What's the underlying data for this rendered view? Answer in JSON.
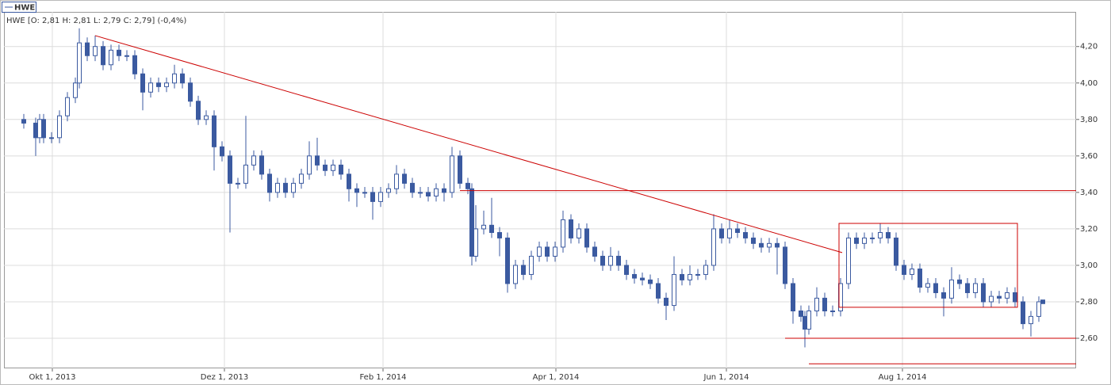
{
  "chart_data": {
    "type": "candlestick",
    "legend": "HWE",
    "info": "HWE [O: 2,81  H: 2,81  L: 2,79  C: 2,79] (-0,4%)",
    "color": "#3b5aa0",
    "annotation_color": "#cc0000",
    "grid": true,
    "xlim": [
      -5,
      265.4
    ],
    "ylim": [
      2.435,
      4.39
    ],
    "xticks": [
      {
        "value": 7.2,
        "label": "Okt 1, 2013"
      },
      {
        "value": 50.6,
        "label": "Dez 1, 2013"
      },
      {
        "value": 90.6,
        "label": "Feb 1, 2014"
      },
      {
        "value": 134.2,
        "label": "Apr 1, 2014"
      },
      {
        "value": 177.2,
        "label": "Jun 1, 2014"
      },
      {
        "value": 221.6,
        "label": "Aug 1, 2014"
      }
    ],
    "yticks": [
      {
        "value": 2.6,
        "label": "2,60"
      },
      {
        "value": 2.8,
        "label": "2,80"
      },
      {
        "value": 3.0,
        "label": "3,00"
      },
      {
        "value": 3.2,
        "label": "3,20"
      },
      {
        "value": 3.4,
        "label": "3,40"
      },
      {
        "value": 3.6,
        "label": "3,60"
      },
      {
        "value": 3.8,
        "label": "3,80"
      },
      {
        "value": 4.0,
        "label": "4,00"
      },
      {
        "value": 4.2,
        "label": "4,20"
      }
    ],
    "x": [
      0,
      3,
      4,
      5,
      7,
      9,
      11,
      13,
      14,
      16,
      18,
      20,
      22,
      24,
      26,
      28,
      30,
      32,
      34,
      36,
      38,
      40,
      42,
      44,
      46,
      48,
      50,
      52,
      54,
      56,
      58,
      60,
      62,
      64,
      66,
      68,
      70,
      72,
      74,
      76,
      78,
      80,
      82,
      84,
      86,
      88,
      90,
      92,
      94,
      96,
      98,
      100,
      102,
      104,
      106,
      108,
      110,
      112,
      113,
      114,
      116,
      118,
      120,
      122,
      124,
      126,
      128,
      130,
      132,
      134,
      136,
      138,
      140,
      142,
      144,
      146,
      148,
      150,
      152,
      154,
      156,
      158,
      160,
      162,
      164,
      166,
      168,
      170,
      172,
      174,
      176,
      178,
      180,
      182,
      184,
      186,
      188,
      190,
      192,
      194,
      196,
      197,
      198,
      200,
      202,
      204,
      206,
      208,
      210,
      212,
      214,
      216,
      218,
      220,
      222,
      224,
      226,
      228,
      230,
      232,
      234,
      236,
      238,
      240,
      242,
      244,
      246,
      248,
      250,
      252,
      254,
      256,
      257
    ],
    "candles": [
      [
        3.8,
        3.83,
        3.75,
        3.78
      ],
      [
        3.78,
        3.81,
        3.6,
        3.7
      ],
      [
        3.7,
        3.83,
        3.67,
        3.8
      ],
      [
        3.8,
        3.83,
        3.67,
        3.7
      ],
      [
        3.7,
        3.73,
        3.67,
        3.7
      ],
      [
        3.7,
        3.85,
        3.67,
        3.82
      ],
      [
        3.82,
        3.95,
        3.79,
        3.92
      ],
      [
        3.92,
        4.03,
        3.89,
        4.0
      ],
      [
        4.0,
        4.3,
        3.97,
        4.22
      ],
      [
        4.22,
        4.25,
        4.12,
        4.15
      ],
      [
        4.15,
        4.26,
        4.12,
        4.2
      ],
      [
        4.2,
        4.23,
        4.07,
        4.1
      ],
      [
        4.1,
        4.21,
        4.07,
        4.18
      ],
      [
        4.18,
        4.21,
        4.12,
        4.15
      ],
      [
        4.15,
        4.18,
        4.12,
        4.15
      ],
      [
        4.15,
        4.18,
        4.02,
        4.05
      ],
      [
        4.05,
        4.08,
        3.85,
        3.95
      ],
      [
        3.95,
        4.03,
        3.92,
        4.0
      ],
      [
        4.0,
        4.03,
        3.95,
        3.98
      ],
      [
        3.98,
        4.03,
        3.95,
        4.0
      ],
      [
        4.0,
        4.1,
        3.97,
        4.05
      ],
      [
        4.05,
        4.08,
        3.97,
        4.0
      ],
      [
        4.0,
        4.03,
        3.87,
        3.9
      ],
      [
        3.9,
        3.93,
        3.77,
        3.8
      ],
      [
        3.8,
        3.85,
        3.77,
        3.82
      ],
      [
        3.82,
        3.85,
        3.52,
        3.65
      ],
      [
        3.65,
        3.68,
        3.57,
        3.6
      ],
      [
        3.6,
        3.63,
        3.18,
        3.45
      ],
      [
        3.45,
        3.48,
        3.42,
        3.45
      ],
      [
        3.45,
        3.82,
        3.42,
        3.55
      ],
      [
        3.55,
        3.63,
        3.52,
        3.6
      ],
      [
        3.6,
        3.63,
        3.47,
        3.5
      ],
      [
        3.5,
        3.53,
        3.35,
        3.4
      ],
      [
        3.4,
        3.48,
        3.37,
        3.45
      ],
      [
        3.45,
        3.48,
        3.37,
        3.4
      ],
      [
        3.4,
        3.48,
        3.37,
        3.45
      ],
      [
        3.45,
        3.53,
        3.42,
        3.5
      ],
      [
        3.5,
        3.68,
        3.47,
        3.6
      ],
      [
        3.6,
        3.7,
        3.52,
        3.55
      ],
      [
        3.55,
        3.58,
        3.49,
        3.52
      ],
      [
        3.52,
        3.58,
        3.49,
        3.55
      ],
      [
        3.55,
        3.58,
        3.47,
        3.5
      ],
      [
        3.5,
        3.53,
        3.35,
        3.42
      ],
      [
        3.42,
        3.45,
        3.32,
        3.4
      ],
      [
        3.4,
        3.43,
        3.37,
        3.4
      ],
      [
        3.4,
        3.43,
        3.25,
        3.35
      ],
      [
        3.35,
        3.43,
        3.32,
        3.4
      ],
      [
        3.4,
        3.45,
        3.37,
        3.42
      ],
      [
        3.42,
        3.55,
        3.39,
        3.5
      ],
      [
        3.5,
        3.53,
        3.42,
        3.45
      ],
      [
        3.45,
        3.48,
        3.37,
        3.4
      ],
      [
        3.4,
        3.43,
        3.37,
        3.4
      ],
      [
        3.4,
        3.43,
        3.35,
        3.38
      ],
      [
        3.38,
        3.45,
        3.35,
        3.42
      ],
      [
        3.42,
        3.45,
        3.35,
        3.4
      ],
      [
        3.4,
        3.65,
        3.37,
        3.6
      ],
      [
        3.6,
        3.63,
        3.42,
        3.45
      ],
      [
        3.45,
        3.48,
        3.39,
        3.42
      ],
      [
        3.42,
        3.45,
        3.0,
        3.05
      ],
      [
        3.05,
        3.33,
        3.02,
        3.2
      ],
      [
        3.2,
        3.3,
        3.17,
        3.22
      ],
      [
        3.22,
        3.37,
        3.15,
        3.18
      ],
      [
        3.18,
        3.21,
        3.05,
        3.15
      ],
      [
        3.15,
        3.18,
        2.85,
        2.9
      ],
      [
        2.9,
        3.03,
        2.87,
        3.0
      ],
      [
        3.0,
        3.03,
        2.92,
        2.95
      ],
      [
        2.95,
        3.08,
        2.92,
        3.05
      ],
      [
        3.05,
        3.13,
        3.02,
        3.1
      ],
      [
        3.1,
        3.13,
        3.02,
        3.05
      ],
      [
        3.05,
        3.13,
        3.02,
        3.1
      ],
      [
        3.1,
        3.3,
        3.07,
        3.25
      ],
      [
        3.25,
        3.28,
        3.12,
        3.15
      ],
      [
        3.15,
        3.23,
        3.12,
        3.2
      ],
      [
        3.2,
        3.23,
        3.07,
        3.1
      ],
      [
        3.1,
        3.13,
        3.02,
        3.05
      ],
      [
        3.05,
        3.08,
        2.97,
        3.0
      ],
      [
        3.0,
        3.1,
        2.97,
        3.05
      ],
      [
        3.05,
        3.08,
        2.97,
        3.0
      ],
      [
        3.0,
        3.03,
        2.92,
        2.95
      ],
      [
        2.95,
        2.98,
        2.9,
        2.93
      ],
      [
        2.93,
        2.96,
        2.89,
        2.92
      ],
      [
        2.92,
        2.95,
        2.87,
        2.9
      ],
      [
        2.9,
        2.93,
        2.79,
        2.82
      ],
      [
        2.82,
        2.85,
        2.7,
        2.78
      ],
      [
        2.78,
        3.05,
        2.75,
        2.95
      ],
      [
        2.95,
        2.98,
        2.89,
        2.92
      ],
      [
        2.92,
        3.0,
        2.89,
        2.95
      ],
      [
        2.95,
        2.98,
        2.92,
        2.95
      ],
      [
        2.95,
        3.03,
        2.92,
        3.0
      ],
      [
        3.0,
        3.28,
        2.97,
        3.2
      ],
      [
        3.2,
        3.23,
        3.12,
        3.15
      ],
      [
        3.15,
        3.25,
        3.12,
        3.2
      ],
      [
        3.2,
        3.23,
        3.15,
        3.18
      ],
      [
        3.18,
        3.21,
        3.12,
        3.15
      ],
      [
        3.15,
        3.18,
        3.09,
        3.12
      ],
      [
        3.12,
        3.15,
        3.07,
        3.1
      ],
      [
        3.1,
        3.15,
        3.07,
        3.12
      ],
      [
        3.12,
        3.15,
        2.95,
        3.1
      ],
      [
        3.1,
        3.13,
        2.87,
        2.9
      ],
      [
        2.9,
        2.93,
        2.68,
        2.75
      ],
      [
        2.75,
        2.78,
        2.69,
        2.72
      ],
      [
        2.72,
        2.75,
        2.55,
        2.65
      ],
      [
        2.65,
        2.78,
        2.62,
        2.75
      ],
      [
        2.75,
        2.88,
        2.72,
        2.82
      ],
      [
        2.82,
        2.85,
        2.72,
        2.75
      ],
      [
        2.75,
        2.78,
        2.72,
        2.75
      ],
      [
        2.75,
        2.93,
        2.72,
        2.9
      ],
      [
        2.9,
        3.18,
        2.87,
        3.15
      ],
      [
        3.15,
        3.18,
        3.09,
        3.12
      ],
      [
        3.12,
        3.18,
        3.09,
        3.15
      ],
      [
        3.15,
        3.18,
        3.12,
        3.15
      ],
      [
        3.15,
        3.23,
        3.12,
        3.18
      ],
      [
        3.18,
        3.21,
        3.12,
        3.15
      ],
      [
        3.15,
        3.18,
        2.97,
        3.0
      ],
      [
        3.0,
        3.03,
        2.92,
        2.95
      ],
      [
        2.95,
        3.01,
        2.92,
        2.98
      ],
      [
        2.98,
        3.01,
        2.85,
        2.88
      ],
      [
        2.88,
        2.93,
        2.85,
        2.9
      ],
      [
        2.9,
        2.93,
        2.82,
        2.85
      ],
      [
        2.85,
        2.88,
        2.72,
        2.82
      ],
      [
        2.82,
        2.99,
        2.79,
        2.92
      ],
      [
        2.92,
        2.95,
        2.87,
        2.9
      ],
      [
        2.9,
        2.93,
        2.82,
        2.85
      ],
      [
        2.85,
        2.93,
        2.82,
        2.9
      ],
      [
        2.9,
        2.93,
        2.77,
        2.8
      ],
      [
        2.8,
        2.86,
        2.77,
        2.83
      ],
      [
        2.83,
        2.86,
        2.79,
        2.82
      ],
      [
        2.82,
        2.88,
        2.79,
        2.85
      ],
      [
        2.85,
        2.88,
        2.77,
        2.8
      ],
      [
        2.8,
        2.83,
        2.65,
        2.68
      ],
      [
        2.68,
        2.75,
        2.61,
        2.72
      ],
      [
        2.72,
        2.83,
        2.69,
        2.8
      ],
      [
        2.81,
        2.81,
        2.79,
        2.79
      ]
    ],
    "lines": [
      {
        "x": [
          18,
          206.4
        ],
        "y": [
          4.26,
          3.07
        ]
      },
      {
        "x": [
          110,
          265.4
        ],
        "y": [
          3.41,
          3.41
        ]
      },
      {
        "x": [
          192,
          265.4
        ],
        "y": [
          2.6,
          2.6
        ]
      },
      {
        "x": [
          198,
          265.4
        ],
        "y": [
          2.46,
          2.46
        ]
      }
    ],
    "rects": [
      {
        "x": [
          205.6,
          250.6
        ],
        "y": [
          3.23,
          2.77
        ]
      }
    ]
  }
}
